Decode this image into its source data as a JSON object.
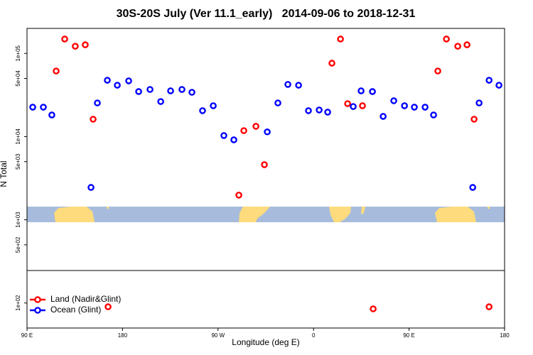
{
  "chart_data": {
    "type": "scatter",
    "title": "30S-20S July (Ver 11.1_early)   2014-09-06 to 2018-12-31",
    "xlabel": "Longitude (deg E)",
    "ylabel": "N Total",
    "ylog": true,
    "legend": "lower left",
    "xlim": [
      90,
      540
    ],
    "xticks": [
      {
        "value": 90,
        "label": "90 E"
      },
      {
        "value": 180,
        "label": "180"
      },
      {
        "value": 270,
        "label": "90 W"
      },
      {
        "value": 360,
        "label": "0"
      },
      {
        "value": 450,
        "label": "90 E"
      },
      {
        "value": 540,
        "label": "180"
      }
    ],
    "ylim": [
      50,
      200000
    ],
    "yticks": [
      {
        "value": 100,
        "label": "1e+02"
      },
      {
        "value": 500,
        "label": "5e+02"
      },
      {
        "value": 1000,
        "label": "1e+03"
      },
      {
        "value": 5000,
        "label": "5e+03"
      },
      {
        "value": 10000,
        "label": "1e+04"
      },
      {
        "value": 50000,
        "label": "5e+04"
      },
      {
        "value": 100000,
        "label": "1e+05"
      }
    ],
    "series": [
      {
        "name": "Land (Nadir&Glint)",
        "color": "#ff0000",
        "x": [
          117.5,
          125.5,
          135.5,
          144.9,
          152.3,
          166.4,
          289.6,
          294.3,
          305.7,
          313.7,
          377.3,
          385.4,
          392.1,
          406.1,
          416.2,
          477.1,
          485.2,
          495.9,
          504.6,
          511.3,
          525.4
        ],
        "values": [
          61500,
          149000,
          122000,
          127000,
          16200,
          90,
          1980,
          11800,
          13300,
          4600,
          76400,
          149000,
          24900,
          23500,
          85,
          61500,
          149000,
          122000,
          127000,
          16200,
          90
        ]
      },
      {
        "name": "Ocean (Glint)",
        "color": "#0000ff",
        "x": [
          95.4,
          105.4,
          113.4,
          150.3,
          156.3,
          165.7,
          175.1,
          185.8,
          195.2,
          205.9,
          216.0,
          225.3,
          236.0,
          245.4,
          255.4,
          265.5,
          275.5,
          284.9,
          316.4,
          326.4,
          335.8,
          345.9,
          355.2,
          365.3,
          373.3,
          397.4,
          404.8,
          415.5,
          425.6,
          435.6,
          445.7,
          455.0,
          465.1,
          473.1,
          510.0,
          516.0,
          525.4,
          534.7
        ],
        "values": [
          22600,
          22600,
          18200,
          2450,
          25400,
          47600,
          41500,
          46800,
          34800,
          36900,
          26400,
          35500,
          36900,
          34100,
          20500,
          23500,
          10300,
          9150,
          11400,
          25400,
          42400,
          41500,
          20500,
          20900,
          19700,
          23000,
          35500,
          34800,
          17500,
          27000,
          23500,
          22600,
          22600,
          18200,
          2450,
          25400,
          47600,
          41500
        ]
      }
    ]
  }
}
